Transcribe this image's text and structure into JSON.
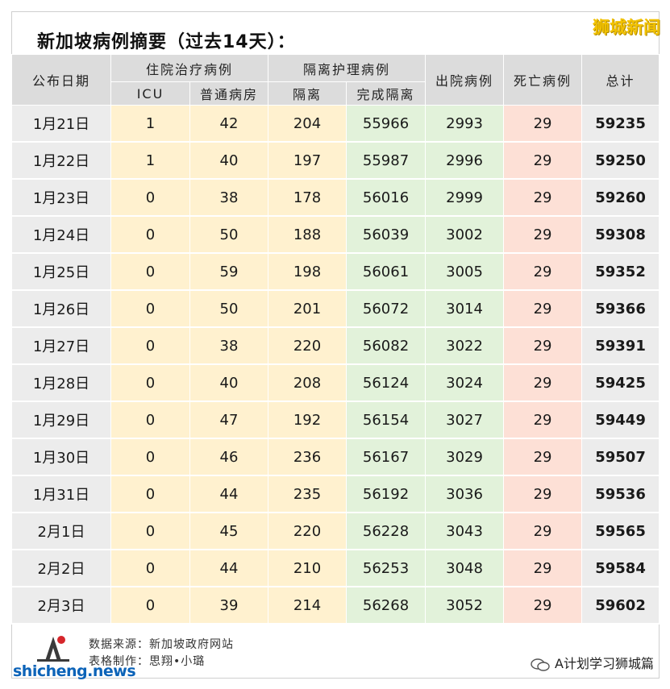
{
  "title": "新加坡病例摘要（过去14天）：",
  "brand": "狮城新闻",
  "headers": {
    "date": "公布日期",
    "hospitalized": "住院治疗病例",
    "isolation": "隔离护理病例",
    "discharged": "出院病例",
    "deaths": "死亡病例",
    "total": "总计",
    "icu": "ICU",
    "general_ward": "普通病房",
    "isolated": "隔离",
    "completed_isolation": "完成隔离"
  },
  "rows": [
    {
      "date": "1月21日",
      "icu": "1",
      "ward": "42",
      "iso": "204",
      "done": "55966",
      "dis": "2993",
      "dead": "29",
      "total": "59235"
    },
    {
      "date": "1月22日",
      "icu": "1",
      "ward": "40",
      "iso": "197",
      "done": "55987",
      "dis": "2996",
      "dead": "29",
      "total": "59250"
    },
    {
      "date": "1月23日",
      "icu": "0",
      "ward": "38",
      "iso": "178",
      "done": "56016",
      "dis": "2999",
      "dead": "29",
      "total": "59260"
    },
    {
      "date": "1月24日",
      "icu": "0",
      "ward": "50",
      "iso": "188",
      "done": "56039",
      "dis": "3002",
      "dead": "29",
      "total": "59308"
    },
    {
      "date": "1月25日",
      "icu": "0",
      "ward": "59",
      "iso": "198",
      "done": "56061",
      "dis": "3005",
      "dead": "29",
      "total": "59352"
    },
    {
      "date": "1月26日",
      "icu": "0",
      "ward": "50",
      "iso": "201",
      "done": "56072",
      "dis": "3014",
      "dead": "29",
      "total": "59366"
    },
    {
      "date": "1月27日",
      "icu": "0",
      "ward": "38",
      "iso": "220",
      "done": "56082",
      "dis": "3022",
      "dead": "29",
      "total": "59391"
    },
    {
      "date": "1月28日",
      "icu": "0",
      "ward": "40",
      "iso": "208",
      "done": "56124",
      "dis": "3024",
      "dead": "29",
      "total": "59425"
    },
    {
      "date": "1月29日",
      "icu": "0",
      "ward": "47",
      "iso": "192",
      "done": "56154",
      "dis": "3027",
      "dead": "29",
      "total": "59449"
    },
    {
      "date": "1月30日",
      "icu": "0",
      "ward": "46",
      "iso": "236",
      "done": "56167",
      "dis": "3029",
      "dead": "29",
      "total": "59507"
    },
    {
      "date": "1月31日",
      "icu": "0",
      "ward": "44",
      "iso": "235",
      "done": "56192",
      "dis": "3036",
      "dead": "29",
      "total": "59536"
    },
    {
      "date": "2月1日",
      "icu": "0",
      "ward": "45",
      "iso": "220",
      "done": "56228",
      "dis": "3043",
      "dead": "29",
      "total": "59565"
    },
    {
      "date": "2月2日",
      "icu": "0",
      "ward": "44",
      "iso": "210",
      "done": "56253",
      "dis": "3048",
      "dead": "29",
      "total": "59584"
    },
    {
      "date": "2月3日",
      "icu": "0",
      "ward": "39",
      "iso": "214",
      "done": "56268",
      "dis": "3052",
      "dead": "29",
      "total": "59602"
    }
  ],
  "footer": {
    "source": "数据来源：新加坡政府网站",
    "maker": "表格制作：思翔•小璐"
  },
  "site": "shicheng.news",
  "wechat_account": "A计划学习狮城篇",
  "icons": {
    "logo": "a-plan-logo",
    "wechat": "wechat-icon"
  },
  "colors": {
    "brand": "#f2c200",
    "hospitalized": "#fff1cf",
    "discharged": "#e2f2da",
    "deaths": "#fde0d6",
    "header": "#dcdcdc"
  }
}
